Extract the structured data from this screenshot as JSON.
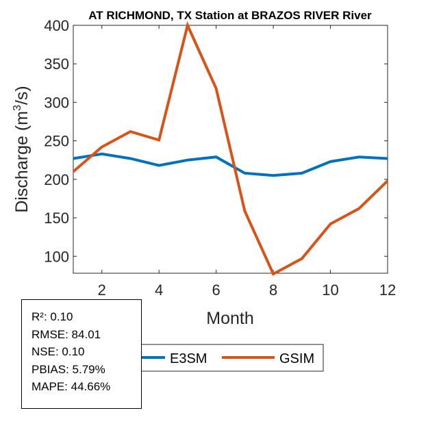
{
  "chart_data": {
    "type": "line",
    "title": "AT RICHMOND, TX  Station at  BRAZOS RIVER  River",
    "xlabel": "Month",
    "ylabel": "Discharge (m³/s)",
    "ylabel_parts": {
      "pre": "Discharge (m",
      "sup": "3",
      "post": "/s)"
    },
    "xlim": [
      1,
      12
    ],
    "ylim": [
      78,
      400
    ],
    "xticks": [
      2,
      4,
      6,
      8,
      10,
      12
    ],
    "yticks": [
      100,
      150,
      200,
      250,
      300,
      350,
      400
    ],
    "grid": false,
    "legend_position": "bottom-center",
    "x": [
      1,
      2,
      3,
      4,
      5,
      6,
      7,
      8,
      9,
      10,
      11,
      12
    ],
    "series": [
      {
        "name": "E3SM",
        "color": "#0072BD",
        "values": [
          227,
          233,
          227,
          218,
          225,
          229,
          208,
          205,
          208,
          223,
          229,
          227
        ]
      },
      {
        "name": "GSIM",
        "color": "#D95319",
        "values": [
          210,
          242,
          262,
          251,
          400,
          318,
          159,
          77,
          97,
          142,
          162,
          198
        ]
      }
    ]
  },
  "stats": [
    "R²: 0.10",
    "RMSE: 84.01",
    "NSE: 0.10",
    "PBIAS: 5.79%",
    "MAPE: 44.66%"
  ]
}
